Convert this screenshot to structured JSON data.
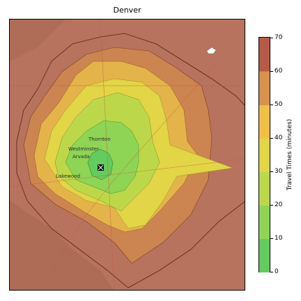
{
  "title": "Denver",
  "colorbar": {
    "label": "Travel Times (minutes)",
    "ticks": [
      "0",
      "10",
      "20",
      "30",
      "40",
      "50",
      "60",
      "70"
    ],
    "bands": [
      {
        "from": 0,
        "to": 10,
        "color": "#62cc5e"
      },
      {
        "from": 10,
        "to": 20,
        "color": "#8ed455"
      },
      {
        "from": 20,
        "to": 30,
        "color": "#bcd84a"
      },
      {
        "from": 30,
        "to": 40,
        "color": "#e2d546"
      },
      {
        "from": 40,
        "to": 50,
        "color": "#f0bf46"
      },
      {
        "from": 50,
        "to": 60,
        "color": "#d8924c"
      },
      {
        "from": 60,
        "to": 70,
        "color": "#b85a48"
      }
    ]
  },
  "places": {
    "thornton": "Thornton",
    "westminster": "Westminster",
    "arvada": "Arvada",
    "lakewood": "Lakewood"
  },
  "colors": {
    "outside": "#b8735f",
    "isochrone_outline": "#5a1d12",
    "center_marker": "#000000"
  }
}
